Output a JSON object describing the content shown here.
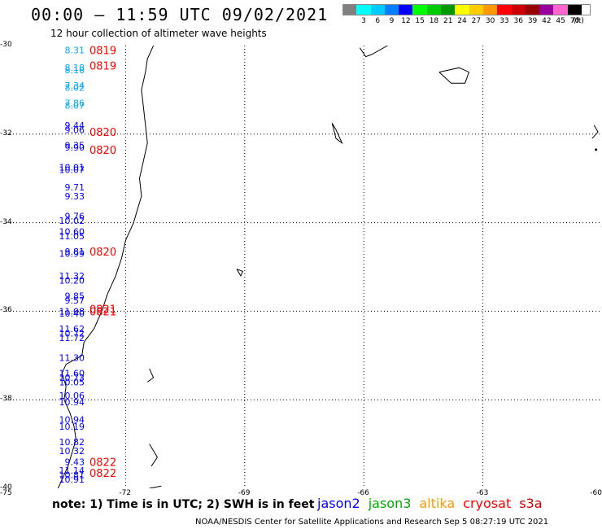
{
  "header": {
    "title": "00:00 – 11:59 UTC 09/02/2021",
    "subtitle": "12 hour collection of altimeter wave heights"
  },
  "legend": {
    "unit": "(ft)",
    "bins": [
      {
        "label": "",
        "color": "#808080"
      },
      {
        "label": "3",
        "color": "#00ffff"
      },
      {
        "label": "6",
        "color": "#00ccff"
      },
      {
        "label": "9",
        "color": "#0080ff"
      },
      {
        "label": "12",
        "color": "#0000ff"
      },
      {
        "label": "15",
        "color": "#00ff00"
      },
      {
        "label": "18",
        "color": "#00cc00"
      },
      {
        "label": "21",
        "color": "#009900"
      },
      {
        "label": "24",
        "color": "#ffff00"
      },
      {
        "label": "27",
        "color": "#ffcc00"
      },
      {
        "label": "30",
        "color": "#ff9900"
      },
      {
        "label": "33",
        "color": "#ff0000"
      },
      {
        "label": "36",
        "color": "#cc0000"
      },
      {
        "label": "39",
        "color": "#990000"
      },
      {
        "label": "42",
        "color": "#990099"
      },
      {
        "label": "45",
        "color": "#ff66cc"
      },
      {
        "label": "70",
        "color": "#000000"
      }
    ]
  },
  "axes": {
    "lat_ticks": [
      "-30",
      "-32",
      "-34",
      "-36",
      "-38",
      "-40"
    ],
    "lon_ticks": [
      "-75",
      "-72",
      "-69",
      "-66",
      "-63",
      "-60"
    ]
  },
  "wave_heights": [
    {
      "lat": -30.1,
      "value": "8.31",
      "color": "#00aaff"
    },
    {
      "lat": -30.5,
      "value": "8.18",
      "color": "#00aaff"
    },
    {
      "lat": -30.55,
      "value": "8.16",
      "color": "#00aaff"
    },
    {
      "lat": -30.9,
      "value": "7.34",
      "color": "#00aaff"
    },
    {
      "lat": -30.95,
      "value": "8.02",
      "color": "#00aaff"
    },
    {
      "lat": -31.3,
      "value": "7.86",
      "color": "#00aaff"
    },
    {
      "lat": -31.35,
      "value": "8.07",
      "color": "#00aaff"
    },
    {
      "lat": -31.8,
      "value": "9.44",
      "color": "#0000ff"
    },
    {
      "lat": -31.9,
      "value": "9.06",
      "color": "#0000ff"
    },
    {
      "lat": -32.25,
      "value": "9.35",
      "color": "#0000ff"
    },
    {
      "lat": -32.3,
      "value": "9.90",
      "color": "#0000ff"
    },
    {
      "lat": -32.75,
      "value": "10.01",
      "color": "#0000ff"
    },
    {
      "lat": -32.8,
      "value": "10.07",
      "color": "#0000ff"
    },
    {
      "lat": -33.2,
      "value": "9.71",
      "color": "#0000ff"
    },
    {
      "lat": -33.4,
      "value": "9.33",
      "color": "#0000ff"
    },
    {
      "lat": -33.85,
      "value": "9.76",
      "color": "#0000ff"
    },
    {
      "lat": -33.95,
      "value": "10.02",
      "color": "#0000ff"
    },
    {
      "lat": -34.2,
      "value": "10.60",
      "color": "#0000ff"
    },
    {
      "lat": -34.3,
      "value": "11.05",
      "color": "#0000ff"
    },
    {
      "lat": -34.65,
      "value": "9.81",
      "color": "#0000ff"
    },
    {
      "lat": -34.7,
      "value": "10.99",
      "color": "#0000ff"
    },
    {
      "lat": -35.2,
      "value": "11.32",
      "color": "#0000ff"
    },
    {
      "lat": -35.3,
      "value": "10.20",
      "color": "#0000ff"
    },
    {
      "lat": -35.65,
      "value": "9.85",
      "color": "#0000ff"
    },
    {
      "lat": -35.75,
      "value": "9.57",
      "color": "#0000ff"
    },
    {
      "lat": -36.0,
      "value": "11.08",
      "color": "#0000ff"
    },
    {
      "lat": -36.05,
      "value": "10.40",
      "color": "#0000ff"
    },
    {
      "lat": -36.4,
      "value": "11.62",
      "color": "#0000ff"
    },
    {
      "lat": -36.5,
      "value": "10.72",
      "color": "#0000ff"
    },
    {
      "lat": -36.6,
      "value": "11.72",
      "color": "#0000ff"
    },
    {
      "lat": -37.05,
      "value": "11.30",
      "color": "#0000ff"
    },
    {
      "lat": -37.4,
      "value": "11.60",
      "color": "#0000ff"
    },
    {
      "lat": -37.5,
      "value": "10.73",
      "color": "#0000ff"
    },
    {
      "lat": -37.6,
      "value": "10.05",
      "color": "#0000ff"
    },
    {
      "lat": -37.9,
      "value": "10.06",
      "color": "#0000ff"
    },
    {
      "lat": -38.05,
      "value": "10.94",
      "color": "#0000ff"
    },
    {
      "lat": -38.45,
      "value": "10.94",
      "color": "#0000ff"
    },
    {
      "lat": -38.6,
      "value": "10.19",
      "color": "#0000ff"
    },
    {
      "lat": -38.95,
      "value": "10.82",
      "color": "#0000ff"
    },
    {
      "lat": -39.15,
      "value": "10.32",
      "color": "#0000ff"
    },
    {
      "lat": -39.4,
      "value": "9.43",
      "color": "#0000ff"
    },
    {
      "lat": -39.6,
      "value": "11.14",
      "color": "#0000ff"
    },
    {
      "lat": -39.7,
      "value": "10.81",
      "color": "#0000ff"
    },
    {
      "lat": -39.8,
      "value": "10.91",
      "color": "#0000ff"
    }
  ],
  "time_stamps": [
    {
      "lat": -30.1,
      "value": "0819"
    },
    {
      "lat": -30.45,
      "value": "0819"
    },
    {
      "lat": -31.95,
      "value": "0820"
    },
    {
      "lat": -32.35,
      "value": "0820"
    },
    {
      "lat": -34.65,
      "value": "0820"
    },
    {
      "lat": -35.95,
      "value": "0821"
    },
    {
      "lat": -36.0,
      "value": "0821"
    },
    {
      "lat": -39.4,
      "value": "0822"
    },
    {
      "lat": -39.65,
      "value": "0822"
    }
  ],
  "footer": {
    "note": "note: 1) Time is in UTC; 2) SWH is in feet",
    "satellites": [
      {
        "label": "jason2",
        "color": "#0000ff"
      },
      {
        "label": "jason3",
        "color": "#00aa00"
      },
      {
        "label": "altika",
        "color": "#ff9900"
      },
      {
        "label": "cryosat",
        "color": "#ff0000"
      },
      {
        "label": "s3a",
        "color": "#cc0000"
      }
    ],
    "credit": "NOAA/NESDIS Center for Satellite Applications and Research    Sep  5 08:27:19 UTC 2021"
  }
}
